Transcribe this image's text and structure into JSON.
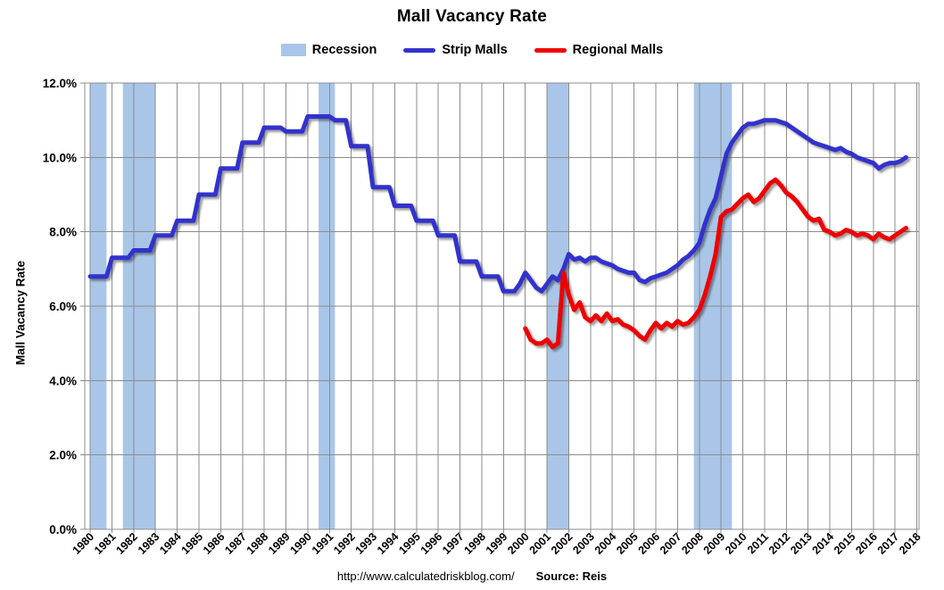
{
  "title": "Mall Vacancy Rate",
  "legend": [
    {
      "label": "Recession",
      "type": "band",
      "color": "#A9C6E8"
    },
    {
      "label": "Strip Malls",
      "type": "line",
      "color": "#3333CC"
    },
    {
      "label": "Regional Malls",
      "type": "line",
      "color": "#EE0000"
    }
  ],
  "footer": {
    "url": "http://www.calculatedriskblog.com/",
    "source": "Source: Reis"
  },
  "chart_data": {
    "type": "line",
    "title": "Mall Vacancy Rate",
    "y_axis_title": "Mall Vacancy Rate",
    "xlabel": "",
    "grid": true,
    "legend_position": "top",
    "ylim": [
      0,
      12
    ],
    "xlim": [
      1979.75,
      2018.1
    ],
    "y_ticks": [
      0,
      2,
      4,
      6,
      8,
      10,
      12
    ],
    "y_tick_labels": [
      "0.0%",
      "2.0%",
      "4.0%",
      "6.0%",
      "8.0%",
      "10.0%",
      "12.0%"
    ],
    "x_ticks": [
      1980,
      1981,
      1982,
      1983,
      1984,
      1985,
      1986,
      1987,
      1988,
      1989,
      1990,
      1991,
      1992,
      1993,
      1994,
      1995,
      1996,
      1997,
      1998,
      1999,
      2000,
      2001,
      2002,
      2003,
      2004,
      2005,
      2006,
      2007,
      2008,
      2009,
      2010,
      2011,
      2012,
      2013,
      2014,
      2015,
      2016,
      2017,
      2018
    ],
    "recessions": [
      [
        1980.0,
        1980.75
      ],
      [
        1981.5,
        1983.0
      ],
      [
        1990.5,
        1991.25
      ],
      [
        2001.0,
        2002.0
      ],
      [
        2007.75,
        2009.5
      ]
    ],
    "recession_color": "#A9C6E8",
    "grid_color": "#8C8C8C",
    "series": [
      {
        "name": "Strip Malls",
        "color": "#3333CC",
        "x_start": 1980.0,
        "x_step": 0.25,
        "values": [
          6.8,
          6.8,
          6.8,
          6.8,
          7.3,
          7.3,
          7.3,
          7.3,
          7.5,
          7.5,
          7.5,
          7.5,
          7.9,
          7.9,
          7.9,
          7.9,
          8.3,
          8.3,
          8.3,
          8.3,
          9.0,
          9.0,
          9.0,
          9.0,
          9.7,
          9.7,
          9.7,
          9.7,
          10.4,
          10.4,
          10.4,
          10.4,
          10.8,
          10.8,
          10.8,
          10.8,
          10.7,
          10.7,
          10.7,
          10.7,
          11.1,
          11.1,
          11.1,
          11.1,
          11.1,
          11.0,
          11.0,
          11.0,
          10.3,
          10.3,
          10.3,
          10.3,
          9.2,
          9.2,
          9.2,
          9.2,
          8.7,
          8.7,
          8.7,
          8.7,
          8.3,
          8.3,
          8.3,
          8.3,
          7.9,
          7.9,
          7.9,
          7.9,
          7.2,
          7.2,
          7.2,
          7.2,
          6.8,
          6.8,
          6.8,
          6.8,
          6.4,
          6.4,
          6.4,
          6.6,
          6.9,
          6.7,
          6.5,
          6.4,
          6.6,
          6.8,
          6.7,
          7.0,
          7.4,
          7.25,
          7.3,
          7.2,
          7.3,
          7.3,
          7.2,
          7.15,
          7.1,
          7.0,
          6.95,
          6.9,
          6.9,
          6.7,
          6.65,
          6.75,
          6.8,
          6.85,
          6.9,
          7.0,
          7.1,
          7.25,
          7.35,
          7.5,
          7.7,
          8.2,
          8.6,
          8.9,
          9.5,
          10.1,
          10.4,
          10.6,
          10.8,
          10.9,
          10.9,
          10.95,
          11.0,
          11.0,
          11.0,
          10.95,
          10.9,
          10.8,
          10.7,
          10.6,
          10.5,
          10.4,
          10.35,
          10.3,
          10.25,
          10.2,
          10.25,
          10.15,
          10.1,
          10.0,
          9.95,
          9.9,
          9.85,
          9.7,
          9.8,
          9.85,
          9.85,
          9.9,
          10.0
        ]
      },
      {
        "name": "Regional Malls",
        "color": "#EE0000",
        "x_start": 2000.0,
        "x_step": 0.25,
        "values": [
          5.4,
          5.1,
          5.0,
          5.0,
          5.1,
          4.9,
          5.0,
          6.9,
          6.3,
          5.9,
          6.1,
          5.7,
          5.6,
          5.75,
          5.6,
          5.8,
          5.6,
          5.65,
          5.5,
          5.45,
          5.35,
          5.2,
          5.1,
          5.35,
          5.55,
          5.4,
          5.55,
          5.45,
          5.6,
          5.5,
          5.55,
          5.7,
          5.9,
          6.3,
          6.8,
          7.4,
          8.4,
          8.55,
          8.6,
          8.75,
          8.9,
          9.0,
          8.8,
          8.9,
          9.1,
          9.3,
          9.4,
          9.25,
          9.05,
          8.95,
          8.8,
          8.6,
          8.4,
          8.3,
          8.35,
          8.05,
          8.0,
          7.9,
          7.95,
          8.05,
          8.0,
          7.9,
          7.95,
          7.9,
          7.8,
          7.95,
          7.85,
          7.8,
          7.9,
          8.0,
          8.1
        ]
      }
    ]
  }
}
